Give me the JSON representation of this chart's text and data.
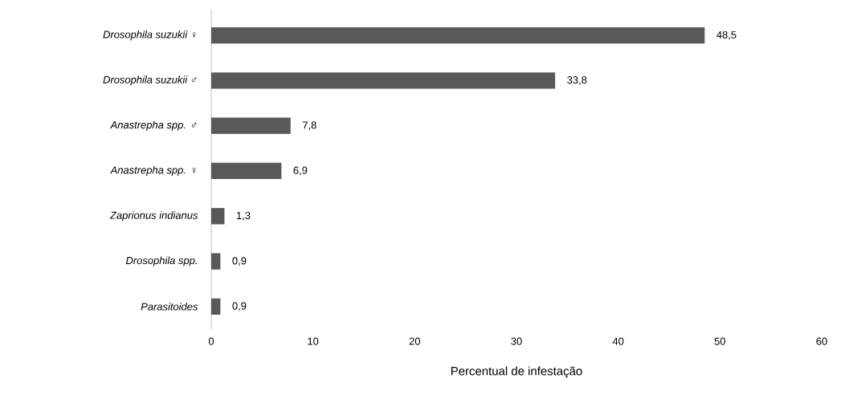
{
  "chart_data": {
    "type": "bar",
    "orientation": "horizontal",
    "xlabel": "Percentual de infestação",
    "categories": [
      "Drosophila suzukii ♀",
      "Drosophila suzukii ♂",
      "Anastrepha spp. ♂",
      "Anastrepha spp. ♀",
      "Zaprionus indianus",
      "Drosophila spp.",
      "Parasitoides"
    ],
    "values": [
      48.5,
      33.8,
      7.8,
      6.9,
      1.3,
      0.9,
      0.9
    ],
    "value_labels": [
      "48,5",
      "33,8",
      "7,8",
      "6,9",
      "1,3",
      "0,9",
      "0,9"
    ],
    "color": "#595959",
    "xlim": [
      0,
      60
    ],
    "xticks": [
      0,
      10,
      20,
      30,
      40,
      50,
      60
    ]
  }
}
